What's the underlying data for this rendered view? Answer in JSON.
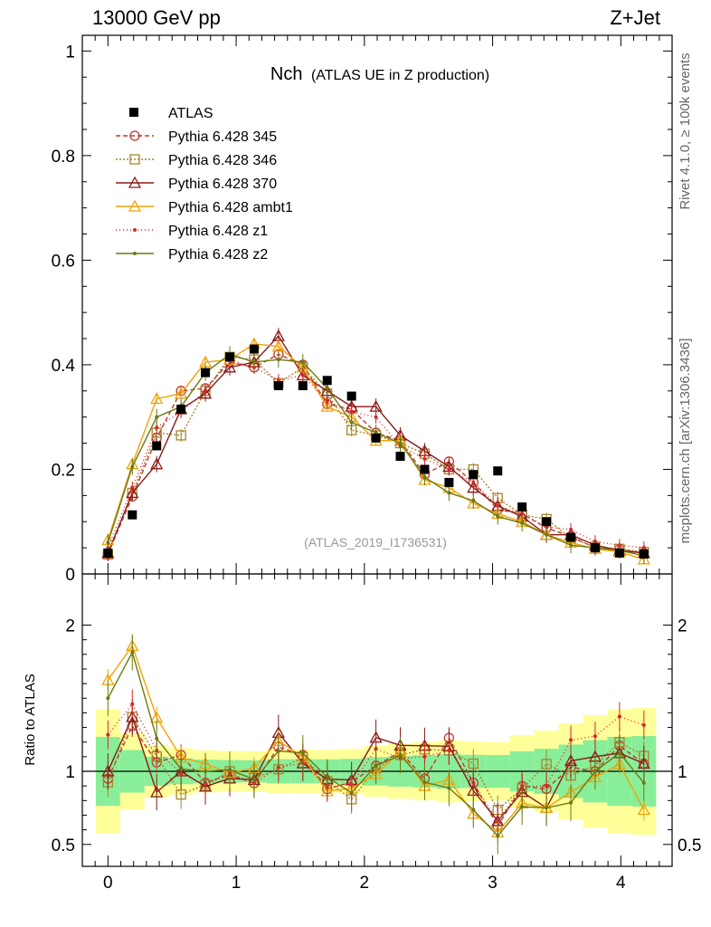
{
  "header": {
    "left": "13000 GeV pp",
    "right": "Z+Jet"
  },
  "title": {
    "main": "Nch",
    "sub": "(ATLAS UE in Z production)"
  },
  "side_labels": {
    "rivet": "Rivet 4.1.0, ≥ 100k events",
    "mcplots": "mcplots.cern.ch [arXiv:1306.3436]"
  },
  "analysis_id": "(ATLAS_2019_I1736531)",
  "ratio_ylabel": "Ratio to ATLAS",
  "chart_data": {
    "type": "scatter",
    "x_ticks": [
      0,
      1,
      2,
      3,
      4
    ],
    "xlim": [
      -0.2,
      4.4
    ],
    "main": {
      "ylim": [
        0,
        1.03
      ],
      "y_ticks": [
        0,
        0.2,
        0.4,
        0.6,
        0.8,
        1
      ]
    },
    "ratio": {
      "ylim": [
        0.35,
        2.35
      ],
      "y_ticks": [
        0.5,
        1,
        2
      ],
      "reference": 1
    },
    "x": [
      0.0,
      0.19,
      0.38,
      0.57,
      0.76,
      0.95,
      1.14,
      1.33,
      1.52,
      1.71,
      1.9,
      2.09,
      2.28,
      2.47,
      2.66,
      2.85,
      3.04,
      3.23,
      3.42,
      3.61,
      3.8,
      3.99,
      4.18
    ],
    "data": {
      "name": "ATLAS",
      "values": [
        0.04,
        0.113,
        0.245,
        0.315,
        0.385,
        0.415,
        0.43,
        0.36,
        0.36,
        0.37,
        0.34,
        0.26,
        0.225,
        0.2,
        0.175,
        0.19,
        0.197,
        0.128,
        0.1,
        0.07,
        0.05,
        0.04,
        0.038
      ]
    },
    "series": [
      {
        "name": "Pythia 6.428 345",
        "color": "#c0392b",
        "dash": "5,3",
        "marker": "circle",
        "values": [
          0.038,
          0.148,
          0.26,
          0.35,
          0.355,
          0.405,
          0.395,
          0.42,
          0.4,
          0.325,
          0.315,
          0.27,
          0.255,
          0.19,
          0.215,
          0.175,
          0.123,
          0.115,
          0.088,
          0.072,
          0.05,
          0.047,
          0.04
        ]
      },
      {
        "name": "Pythia 6.428 346",
        "color": "#a6852d",
        "dash": "2,2",
        "marker": "square",
        "values": [
          0.037,
          0.155,
          0.27,
          0.265,
          0.35,
          0.415,
          0.41,
          0.365,
          0.395,
          0.345,
          0.275,
          0.265,
          0.25,
          0.23,
          0.2,
          0.2,
          0.145,
          0.113,
          0.105,
          0.068,
          0.052,
          0.048,
          0.042
        ]
      },
      {
        "name": "Pythia 6.428 370",
        "color": "#8b1a1a",
        "dash": "",
        "marker": "triangle",
        "values": [
          0.04,
          0.155,
          0.21,
          0.315,
          0.345,
          0.395,
          0.405,
          0.455,
          0.38,
          0.35,
          0.32,
          0.32,
          0.265,
          0.235,
          0.205,
          0.165,
          0.13,
          0.11,
          0.075,
          0.075,
          0.055,
          0.045,
          0.04
        ]
      },
      {
        "name": "Pythia 6.428 ambt1",
        "color": "#f0a30a",
        "dash": "",
        "marker": "triangle",
        "values": [
          0.065,
          0.21,
          0.335,
          0.345,
          0.405,
          0.41,
          0.44,
          0.435,
          0.395,
          0.32,
          0.3,
          0.255,
          0.255,
          0.18,
          0.165,
          0.135,
          0.115,
          0.1,
          0.075,
          0.06,
          0.048,
          0.042,
          0.028
        ]
      },
      {
        "name": "Pythia 6.428 z1",
        "color": "#d62728",
        "dash": "1,3",
        "marker": "dot",
        "values": [
          0.05,
          0.165,
          0.28,
          0.31,
          0.35,
          0.41,
          0.395,
          0.37,
          0.38,
          0.33,
          0.31,
          0.3,
          0.245,
          0.22,
          0.2,
          0.175,
          0.13,
          0.115,
          0.09,
          0.085,
          0.062,
          0.055,
          0.05
        ]
      },
      {
        "name": "Pythia 6.428 z2",
        "color": "#6b7a10",
        "dash": "",
        "marker": "dot",
        "values": [
          0.06,
          0.205,
          0.3,
          0.32,
          0.385,
          0.42,
          0.405,
          0.41,
          0.405,
          0.355,
          0.29,
          0.27,
          0.25,
          0.185,
          0.155,
          0.14,
          0.11,
          0.097,
          0.075,
          0.055,
          0.05,
          0.045,
          0.035
        ]
      }
    ]
  }
}
